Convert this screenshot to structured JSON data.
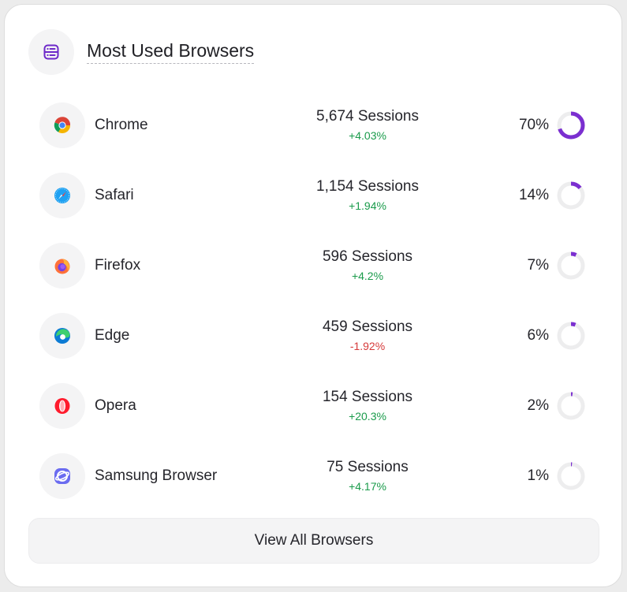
{
  "header": {
    "title": "Most Used Browsers",
    "icon": "list-panel-icon"
  },
  "browsers": [
    {
      "name": "Chrome",
      "icon": "chrome-icon",
      "sessions": "5,674 Sessions",
      "change": "+4.03%",
      "trend": "up",
      "percent": "70%",
      "share": 0.7
    },
    {
      "name": "Safari",
      "icon": "safari-icon",
      "sessions": "1,154 Sessions",
      "change": "+1.94%",
      "trend": "up",
      "percent": "14%",
      "share": 0.14
    },
    {
      "name": "Firefox",
      "icon": "firefox-icon",
      "sessions": "596 Sessions",
      "change": "+4.2%",
      "trend": "up",
      "percent": "7%",
      "share": 0.07
    },
    {
      "name": "Edge",
      "icon": "edge-icon",
      "sessions": "459 Sessions",
      "change": "-1.92%",
      "trend": "down",
      "percent": "6%",
      "share": 0.06
    },
    {
      "name": "Opera",
      "icon": "opera-icon",
      "sessions": "154 Sessions",
      "change": "+20.3%",
      "trend": "up",
      "percent": "2%",
      "share": 0.02
    },
    {
      "name": "Samsung Browser",
      "icon": "samsung-browser-icon",
      "sessions": "75 Sessions",
      "change": "+4.17%",
      "trend": "up",
      "percent": "1%",
      "share": 0.01
    }
  ],
  "footer": {
    "button_label": "View All Browsers"
  },
  "colors": {
    "accent": "#7b2fd0",
    "positive": "#1a9b4b",
    "negative": "#d63a3a",
    "track": "#ededee"
  }
}
